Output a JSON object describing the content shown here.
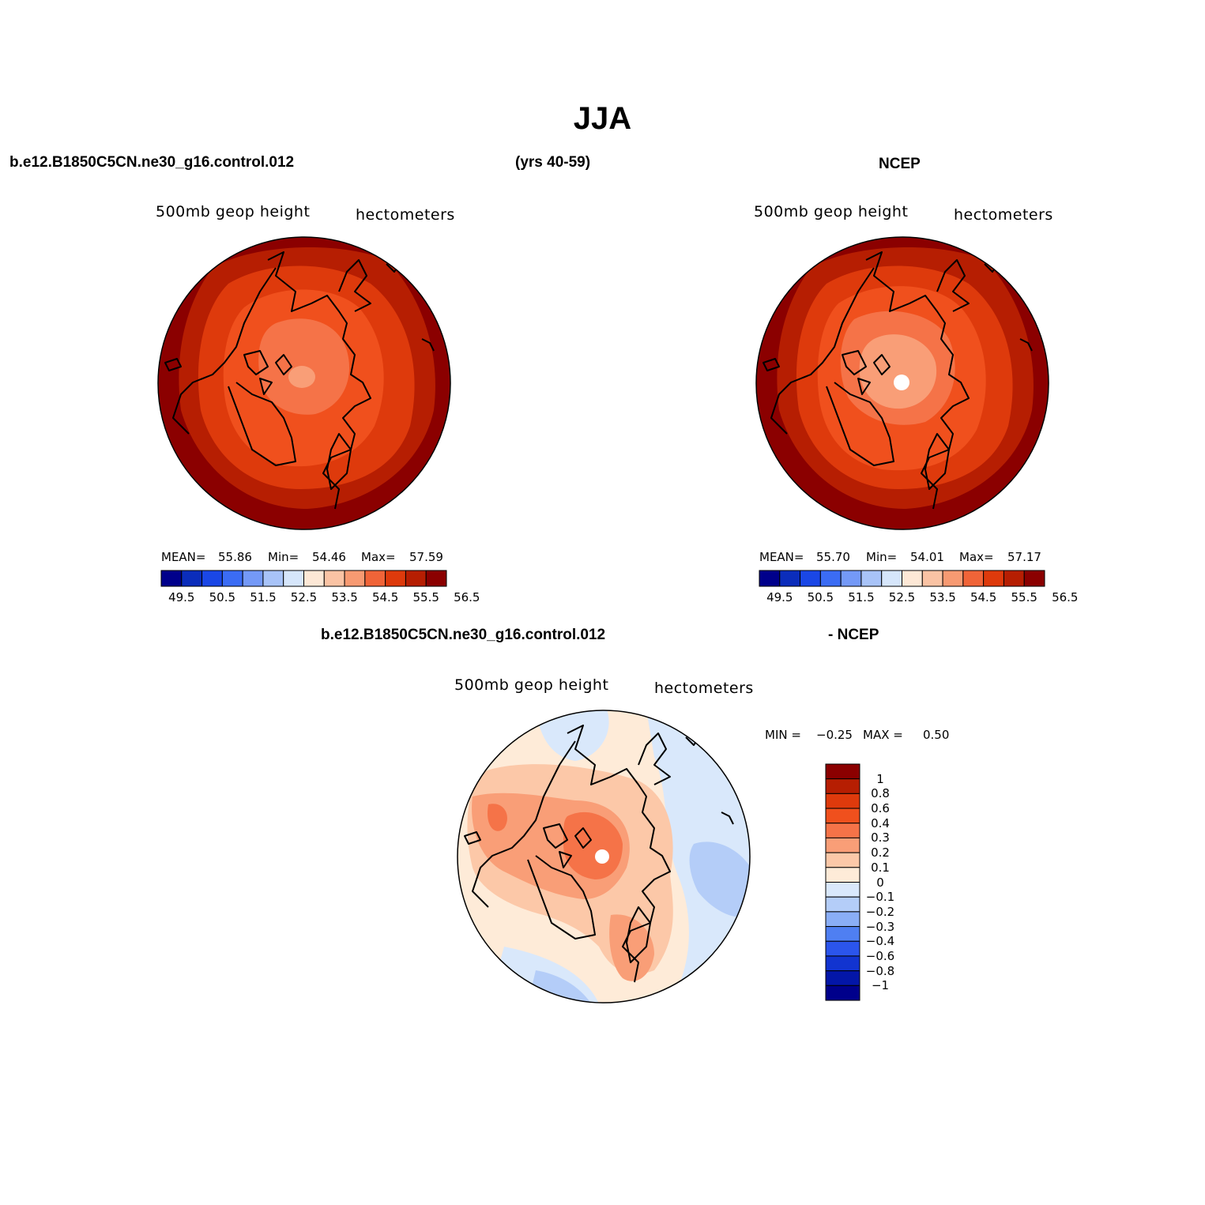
{
  "title": "JJA",
  "header": {
    "case_name": "b.e12.B1850C5CN.ne30_g16.control.012",
    "years": "(yrs 40-59)",
    "obs_name": "NCEP"
  },
  "diff_header": {
    "case_name": "b.e12.B1850C5CN.ne30_g16.control.012",
    "suffix": "- NCEP"
  },
  "panels": {
    "model": {
      "variable": "500mb  geop  height",
      "units": "hectometers",
      "mean_label": "MEAN=",
      "mean_value": "55.86",
      "min_label": "Min=",
      "min_value": "54.46",
      "max_label": "Max=",
      "max_value": "57.59"
    },
    "obs": {
      "variable": "500mb  geop  height",
      "units": "hectometers",
      "mean_label": "MEAN=",
      "mean_value": "55.70",
      "min_label": "Min=",
      "min_value": "54.01",
      "max_label": "Max=",
      "max_value": "57.17"
    },
    "diff": {
      "variable": "500mb  geop  height",
      "units": "hectometers",
      "min_label": "MIN =",
      "min_value": "−0.25",
      "max_label": "MAX =",
      "max_value": "0.50"
    }
  },
  "colorbar_abs": {
    "colors": [
      "#00008b",
      "#0b2dbb",
      "#1a47e6",
      "#3b6cf4",
      "#7499f7",
      "#a8c3f8",
      "#d6e6fb",
      "#fde8d6",
      "#fac3a4",
      "#f79a72",
      "#f06438",
      "#de3a0c",
      "#b61e02",
      "#8b0000"
    ],
    "tick_labels": [
      "49.5",
      "50.5",
      "51.5",
      "52.5",
      "53.5",
      "54.5",
      "55.5",
      "56.5"
    ]
  },
  "colorbar_diff": {
    "colors": [
      "#8b0000",
      "#b61e02",
      "#de3a0c",
      "#f0501d",
      "#f57348",
      "#f99e77",
      "#fcc8a8",
      "#feebd8",
      "#d9e8fb",
      "#b4cdf8",
      "#8aaef6",
      "#4f7ff2",
      "#2b55ec",
      "#1234d0",
      "#0316a8",
      "#00008b"
    ],
    "tick_labels": [
      "1",
      "0.8",
      "0.6",
      "0.4",
      "0.3",
      "0.2",
      "0.1",
      "0",
      "−0.1",
      "−0.2",
      "−0.3",
      "−0.4",
      "−0.6",
      "−0.8",
      "−1"
    ]
  }
}
